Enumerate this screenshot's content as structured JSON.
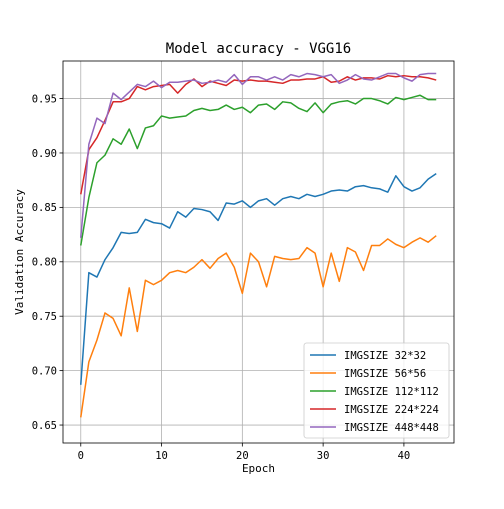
{
  "chart_data": {
    "type": "line",
    "title": "Model accuracy - VGG16",
    "xlabel": "Epoch",
    "ylabel": "Validation Accuracy",
    "xlim": [
      -2.2,
      46.2
    ],
    "ylim": [
      0.6335,
      0.9845
    ],
    "x_ticks": [
      0,
      10,
      20,
      30,
      40
    ],
    "y_ticks": [
      0.65,
      0.7,
      0.75,
      0.8,
      0.85,
      0.9,
      0.95
    ],
    "grid": true,
    "legend_position": "lower-right",
    "x": [
      0,
      1,
      2,
      3,
      4,
      5,
      6,
      7,
      8,
      9,
      10,
      11,
      12,
      13,
      14,
      15,
      16,
      17,
      18,
      19,
      20,
      21,
      22,
      23,
      24,
      25,
      26,
      27,
      28,
      29,
      30,
      31,
      32,
      33,
      34,
      35,
      36,
      37,
      38,
      39,
      40,
      41,
      42,
      43,
      44
    ],
    "series": [
      {
        "name": "IMGSIZE 32*32",
        "color": "#1f77b4",
        "values": [
          0.687,
          0.79,
          0.786,
          0.802,
          0.813,
          0.827,
          0.826,
          0.827,
          0.839,
          0.836,
          0.835,
          0.831,
          0.846,
          0.841,
          0.849,
          0.848,
          0.846,
          0.838,
          0.854,
          0.853,
          0.856,
          0.85,
          0.856,
          0.858,
          0.852,
          0.858,
          0.86,
          0.858,
          0.862,
          0.86,
          0.862,
          0.865,
          0.866,
          0.865,
          0.869,
          0.87,
          0.868,
          0.867,
          0.864,
          0.879,
          0.869,
          0.865,
          0.868,
          0.876,
          0.881
        ]
      },
      {
        "name": "IMGSIZE 56*56",
        "color": "#ff7f0e",
        "values": [
          0.657,
          0.708,
          0.728,
          0.753,
          0.748,
          0.732,
          0.776,
          0.736,
          0.783,
          0.779,
          0.783,
          0.79,
          0.792,
          0.79,
          0.795,
          0.802,
          0.794,
          0.803,
          0.808,
          0.795,
          0.771,
          0.808,
          0.8,
          0.777,
          0.805,
          0.803,
          0.802,
          0.803,
          0.813,
          0.808,
          0.777,
          0.808,
          0.782,
          0.813,
          0.809,
          0.792,
          0.815,
          0.815,
          0.821,
          0.816,
          0.813,
          0.818,
          0.822,
          0.818,
          0.824
        ]
      },
      {
        "name": "IMGSIZE 112*112",
        "color": "#2ca02c",
        "values": [
          0.815,
          0.859,
          0.891,
          0.898,
          0.913,
          0.908,
          0.922,
          0.904,
          0.923,
          0.925,
          0.934,
          0.932,
          0.933,
          0.934,
          0.939,
          0.941,
          0.939,
          0.94,
          0.944,
          0.94,
          0.942,
          0.937,
          0.944,
          0.945,
          0.94,
          0.947,
          0.946,
          0.941,
          0.938,
          0.946,
          0.937,
          0.945,
          0.947,
          0.948,
          0.945,
          0.95,
          0.95,
          0.948,
          0.945,
          0.951,
          0.949,
          0.951,
          0.953,
          0.949,
          0.949
        ]
      },
      {
        "name": "IMGSIZE 224*224",
        "color": "#d62728",
        "values": [
          0.862,
          0.903,
          0.914,
          0.93,
          0.947,
          0.947,
          0.95,
          0.961,
          0.958,
          0.961,
          0.962,
          0.963,
          0.955,
          0.963,
          0.968,
          0.961,
          0.966,
          0.964,
          0.962,
          0.967,
          0.966,
          0.967,
          0.966,
          0.966,
          0.965,
          0.964,
          0.967,
          0.967,
          0.968,
          0.968,
          0.97,
          0.965,
          0.966,
          0.97,
          0.967,
          0.969,
          0.969,
          0.968,
          0.971,
          0.97,
          0.971,
          0.97,
          0.97,
          0.969,
          0.967
        ]
      },
      {
        "name": "IMGSIZE 448*448",
        "color": "#9467bd",
        "values": [
          0.822,
          0.908,
          0.932,
          0.927,
          0.955,
          0.949,
          0.956,
          0.963,
          0.961,
          0.966,
          0.96,
          0.965,
          0.965,
          0.966,
          0.967,
          0.964,
          0.965,
          0.967,
          0.965,
          0.972,
          0.963,
          0.97,
          0.97,
          0.967,
          0.97,
          0.967,
          0.972,
          0.97,
          0.973,
          0.972,
          0.97,
          0.972,
          0.964,
          0.967,
          0.972,
          0.968,
          0.967,
          0.97,
          0.973,
          0.973,
          0.969,
          0.966,
          0.972,
          0.973,
          0.973
        ]
      }
    ]
  }
}
